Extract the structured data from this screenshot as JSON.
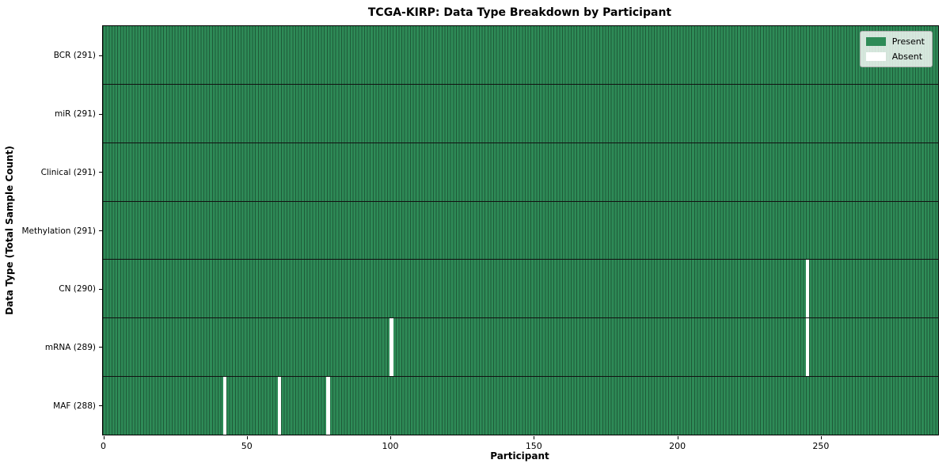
{
  "chart_data": {
    "type": "heatmap",
    "title": "TCGA-KIRP: Data Type Breakdown by Participant",
    "xlabel": "Participant",
    "ylabel": "Data Type (Total Sample Count)",
    "n_participants": 291,
    "xlim": [
      0,
      291
    ],
    "x_ticks": [
      0,
      50,
      100,
      150,
      200,
      250
    ],
    "grid": false,
    "legend_position": "upper right",
    "legend": [
      {
        "label": "Present",
        "color": "#2e8b57"
      },
      {
        "label": "Absent",
        "color": "#ffffff"
      }
    ],
    "rows": [
      {
        "label": "BCR (291)",
        "data_type": "BCR",
        "present_count": 291,
        "absent_participants": []
      },
      {
        "label": "miR (291)",
        "data_type": "miR",
        "present_count": 291,
        "absent_participants": []
      },
      {
        "label": "Clinical (291)",
        "data_type": "Clinical",
        "present_count": 291,
        "absent_participants": []
      },
      {
        "label": "Methylation (291)",
        "data_type": "Methylation",
        "present_count": 291,
        "absent_participants": []
      },
      {
        "label": "CN (290)",
        "data_type": "CN",
        "present_count": 290,
        "absent_participants": [
          245
        ]
      },
      {
        "label": "mRNA (289)",
        "data_type": "mRNA",
        "present_count": 289,
        "absent_participants": [
          100,
          245
        ]
      },
      {
        "label": "MAF (288)",
        "data_type": "MAF",
        "present_count": 288,
        "absent_participants": [
          42,
          61,
          78
        ]
      }
    ],
    "colors": {
      "present": "#2e8b57",
      "present_edge": "#1e5a38",
      "absent": "#ffffff",
      "row_separator": "#111111",
      "spine": "#000000"
    }
  }
}
